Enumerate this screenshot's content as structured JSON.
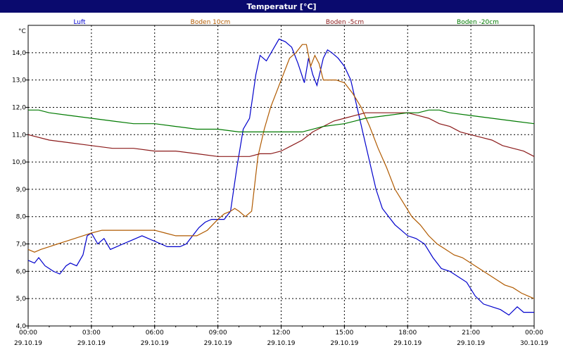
{
  "window": {
    "title": "Temperatur [°C]"
  },
  "chart_data": {
    "type": "line",
    "title": "Temperatur [°C]",
    "ylabel": "°C",
    "ylim": [
      4.0,
      15.0
    ],
    "y_ticks": [
      "4,0",
      "5,0",
      "6,0",
      "7,0",
      "8,0",
      "9,0",
      "10,0",
      "11,0",
      "12,0",
      "13,0",
      "14,0"
    ],
    "x_ticks": [
      {
        "time": "00:00",
        "date": "29.10.19"
      },
      {
        "time": "03:00",
        "date": "29.10.19"
      },
      {
        "time": "06:00",
        "date": "29.10.19"
      },
      {
        "time": "09:00",
        "date": "29.10.19"
      },
      {
        "time": "12:00",
        "date": "29.10.19"
      },
      {
        "time": "15:00",
        "date": "29.10.19"
      },
      {
        "time": "18:00",
        "date": "29.10.19"
      },
      {
        "time": "21:00",
        "date": "29.10.19"
      },
      {
        "time": "00:00",
        "date": "30.10.19"
      }
    ],
    "grid": true,
    "legend_position": "top",
    "series": [
      {
        "name": "Luft",
        "color": "#0000cc",
        "x": [
          0,
          0.3,
          0.5,
          0.8,
          1.0,
          1.2,
          1.5,
          1.8,
          2.0,
          2.3,
          2.6,
          2.8,
          3.0,
          3.3,
          3.6,
          3.9,
          4.2,
          4.5,
          4.8,
          5.1,
          5.4,
          5.7,
          6.0,
          6.3,
          6.6,
          6.9,
          7.2,
          7.5,
          7.8,
          8.1,
          8.4,
          8.7,
          9.0,
          9.3,
          9.6,
          9.9,
          10.2,
          10.5,
          10.8,
          11.0,
          11.3,
          11.6,
          11.9,
          12.2,
          12.5,
          12.8,
          13.1,
          13.3,
          13.5,
          13.7,
          14.0,
          14.2,
          14.4,
          14.7,
          15.0,
          15.3,
          15.6,
          15.9,
          16.2,
          16.5,
          16.8,
          17.1,
          17.4,
          17.7,
          18.0,
          18.4,
          18.8,
          19.2,
          19.6,
          20.0,
          20.4,
          20.8,
          21.2,
          21.6,
          22.0,
          22.4,
          22.8,
          23.2,
          23.5,
          23.7,
          23.85,
          24.0
        ],
        "y": [
          6.4,
          6.3,
          6.5,
          6.2,
          6.1,
          6.0,
          5.9,
          6.2,
          6.3,
          6.2,
          6.6,
          7.3,
          7.4,
          7.0,
          7.2,
          6.8,
          6.9,
          7.0,
          7.1,
          7.2,
          7.3,
          7.2,
          7.1,
          7.0,
          6.9,
          6.9,
          6.9,
          7.0,
          7.3,
          7.6,
          7.8,
          7.9,
          7.9,
          7.9,
          8.2,
          9.8,
          11.2,
          11.6,
          13.2,
          13.9,
          13.7,
          14.1,
          14.5,
          14.4,
          14.2,
          13.6,
          12.9,
          13.8,
          13.2,
          12.8,
          13.8,
          14.1,
          14.0,
          13.8,
          13.5,
          13.0,
          12.0,
          11.0,
          10.0,
          9.0,
          8.3,
          8.0,
          7.7,
          7.5,
          7.3,
          7.2,
          7.0,
          6.5,
          6.1,
          6.0,
          5.8,
          5.6,
          5.1,
          4.8,
          4.7,
          4.6,
          4.4,
          4.7,
          4.5,
          4.5,
          4.5,
          4.5
        ]
      },
      {
        "name": "Boden 10cm",
        "color": "#b05a00",
        "x": [
          0,
          0.3,
          0.6,
          1.0,
          1.4,
          1.8,
          2.2,
          2.6,
          3.0,
          3.5,
          4.0,
          4.5,
          5.0,
          5.5,
          6.0,
          6.5,
          7.0,
          7.5,
          8.0,
          8.5,
          9.0,
          9.3,
          9.6,
          9.8,
          10.0,
          10.3,
          10.6,
          10.9,
          11.2,
          11.5,
          11.8,
          12.1,
          12.4,
          12.7,
          13.0,
          13.2,
          13.4,
          13.6,
          13.8,
          14.0,
          14.3,
          14.6,
          15.0,
          15.4,
          15.8,
          16.2,
          16.6,
          17.0,
          17.4,
          17.8,
          18.2,
          18.6,
          19.0,
          19.4,
          19.8,
          20.2,
          20.6,
          21.0,
          21.4,
          21.8,
          22.2,
          22.6,
          23.0,
          23.4,
          23.7,
          24.0
        ],
        "y": [
          6.8,
          6.7,
          6.8,
          6.9,
          7.0,
          7.1,
          7.2,
          7.3,
          7.4,
          7.5,
          7.5,
          7.5,
          7.5,
          7.5,
          7.5,
          7.4,
          7.3,
          7.3,
          7.3,
          7.5,
          7.9,
          8.1,
          8.2,
          8.3,
          8.2,
          8.0,
          8.2,
          10.2,
          11.2,
          12.0,
          12.6,
          13.2,
          13.8,
          14.0,
          14.3,
          14.3,
          13.5,
          13.9,
          13.6,
          13.0,
          13.0,
          13.0,
          12.9,
          12.5,
          12.0,
          11.3,
          10.5,
          9.8,
          9.0,
          8.5,
          8.0,
          7.7,
          7.3,
          7.0,
          6.8,
          6.6,
          6.5,
          6.3,
          6.1,
          5.9,
          5.7,
          5.5,
          5.4,
          5.2,
          5.1,
          5.0
        ]
      },
      {
        "name": "Boden -5cm",
        "color": "#8b1a1a",
        "x": [
          0,
          1.0,
          2.0,
          3.0,
          4.0,
          5.0,
          6.0,
          7.0,
          8.0,
          9.0,
          10.0,
          10.5,
          11.0,
          11.5,
          12.0,
          12.5,
          13.0,
          13.5,
          14.0,
          14.5,
          15.0,
          15.5,
          16.0,
          16.5,
          17.0,
          17.5,
          18.0,
          18.5,
          19.0,
          19.5,
          20.0,
          20.5,
          21.0,
          21.5,
          22.0,
          22.5,
          23.0,
          23.5,
          24.0
        ],
        "y": [
          11.0,
          10.8,
          10.7,
          10.6,
          10.5,
          10.5,
          10.4,
          10.4,
          10.3,
          10.2,
          10.2,
          10.2,
          10.3,
          10.3,
          10.4,
          10.6,
          10.8,
          11.1,
          11.3,
          11.5,
          11.6,
          11.7,
          11.8,
          11.8,
          11.8,
          11.8,
          11.8,
          11.7,
          11.6,
          11.4,
          11.3,
          11.1,
          11.0,
          10.9,
          10.8,
          10.6,
          10.5,
          10.4,
          10.2
        ]
      },
      {
        "name": "Boden -20cm",
        "color": "#007a00",
        "x": [
          0,
          0.5,
          1.0,
          2.0,
          3.0,
          4.0,
          5.0,
          6.0,
          7.0,
          8.0,
          9.0,
          10.0,
          11.0,
          12.0,
          13.0,
          14.0,
          15.0,
          15.5,
          16.0,
          17.0,
          18.0,
          18.5,
          19.0,
          19.5,
          20.0,
          21.0,
          22.0,
          23.0,
          24.0
        ],
        "y": [
          11.9,
          11.9,
          11.8,
          11.7,
          11.6,
          11.5,
          11.4,
          11.4,
          11.3,
          11.2,
          11.2,
          11.1,
          11.1,
          11.1,
          11.1,
          11.3,
          11.4,
          11.5,
          11.6,
          11.7,
          11.8,
          11.8,
          11.9,
          11.9,
          11.8,
          11.7,
          11.6,
          11.5,
          11.4
        ]
      }
    ]
  }
}
